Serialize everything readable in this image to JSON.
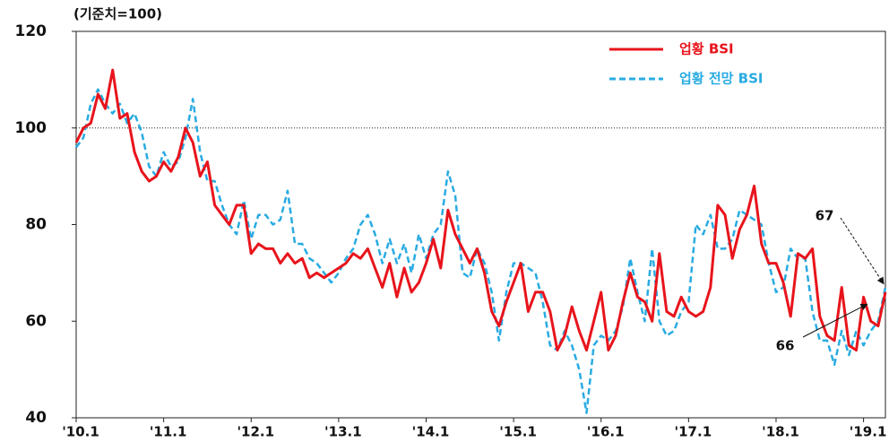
{
  "chart_data": {
    "type": "line",
    "subtitle": "(기준치=100)",
    "categories": [
      "'10.1",
      null,
      null,
      null,
      null,
      null,
      null,
      null,
      null,
      null,
      null,
      null,
      "'11.1",
      null,
      null,
      null,
      null,
      null,
      null,
      null,
      null,
      null,
      null,
      null,
      "'12.1",
      null,
      null,
      null,
      null,
      null,
      null,
      null,
      null,
      null,
      null,
      null,
      "'13.1",
      null,
      null,
      null,
      null,
      null,
      null,
      null,
      null,
      null,
      null,
      null,
      "'14.1",
      null,
      null,
      null,
      null,
      null,
      null,
      null,
      null,
      null,
      null,
      null,
      "'15.1",
      null,
      null,
      null,
      null,
      null,
      null,
      null,
      null,
      null,
      null,
      null,
      "'16.1",
      null,
      null,
      null,
      null,
      null,
      null,
      null,
      null,
      null,
      null,
      null,
      "'17.1",
      null,
      null,
      null,
      null,
      null,
      null,
      null,
      null,
      null,
      null,
      null,
      "'18.1",
      null,
      null,
      null,
      null,
      null,
      null,
      null,
      null,
      null,
      null,
      null,
      "'19.1",
      null,
      null,
      null
    ],
    "series": [
      {
        "name": "업황 BSI",
        "color": "#e8141c",
        "dash": false,
        "values": [
          97,
          100,
          101,
          107,
          104,
          112,
          102,
          103,
          95,
          91,
          89,
          90,
          93,
          91,
          94,
          100,
          97,
          90,
          93,
          84,
          82,
          80,
          84,
          84,
          74,
          76,
          75,
          75,
          72,
          74,
          72,
          73,
          69,
          70,
          69,
          70,
          71,
          72,
          74,
          73,
          75,
          71,
          67,
          72,
          65,
          71,
          66,
          68,
          72,
          77,
          71,
          83,
          78,
          75,
          72,
          75,
          70,
          62,
          59,
          64,
          68,
          72,
          62,
          66,
          66,
          62,
          54,
          57,
          63,
          58,
          54,
          60,
          66,
          54,
          57,
          64,
          70,
          65,
          64,
          60,
          74,
          62,
          61,
          65,
          62,
          61,
          62,
          67,
          84,
          82,
          73,
          79,
          82,
          88,
          76,
          72,
          72,
          68,
          61,
          74,
          73,
          75,
          61,
          57,
          56,
          67,
          55,
          54,
          65,
          60,
          59,
          66
        ]
      },
      {
        "name": "업황 전망 BSI",
        "color": "#29abe2",
        "dash": true,
        "values": [
          96,
          98,
          105,
          108,
          105,
          103,
          105,
          101,
          103,
          99,
          92,
          90,
          95,
          92,
          93,
          98,
          106,
          95,
          89,
          89,
          84,
          80,
          78,
          85,
          77,
          82,
          82,
          80,
          81,
          87,
          76,
          76,
          73,
          72,
          70,
          68,
          70,
          73,
          75,
          80,
          82,
          78,
          72,
          77,
          72,
          76,
          70,
          78,
          73,
          78,
          80,
          91,
          86,
          70,
          69,
          75,
          72,
          66,
          56,
          66,
          72,
          72,
          71,
          70,
          64,
          55,
          54,
          58,
          55,
          50,
          41,
          55,
          57,
          56,
          58,
          63,
          73,
          66,
          60,
          75,
          60,
          57,
          58,
          62,
          64,
          80,
          78,
          82,
          75,
          75,
          77,
          83,
          82,
          81,
          80,
          72,
          66,
          67,
          75,
          73,
          73,
          62,
          56,
          56,
          51,
          58,
          53,
          58,
          55,
          58,
          60,
          67
        ]
      }
    ],
    "ylim": [
      40,
      120
    ],
    "yticks": [
      40,
      60,
      80,
      100,
      120
    ],
    "reference_line": 100,
    "annotations": [
      {
        "text": "67",
        "series": 1
      },
      {
        "text": "66",
        "series": 0
      }
    ],
    "legend": "upper right"
  }
}
